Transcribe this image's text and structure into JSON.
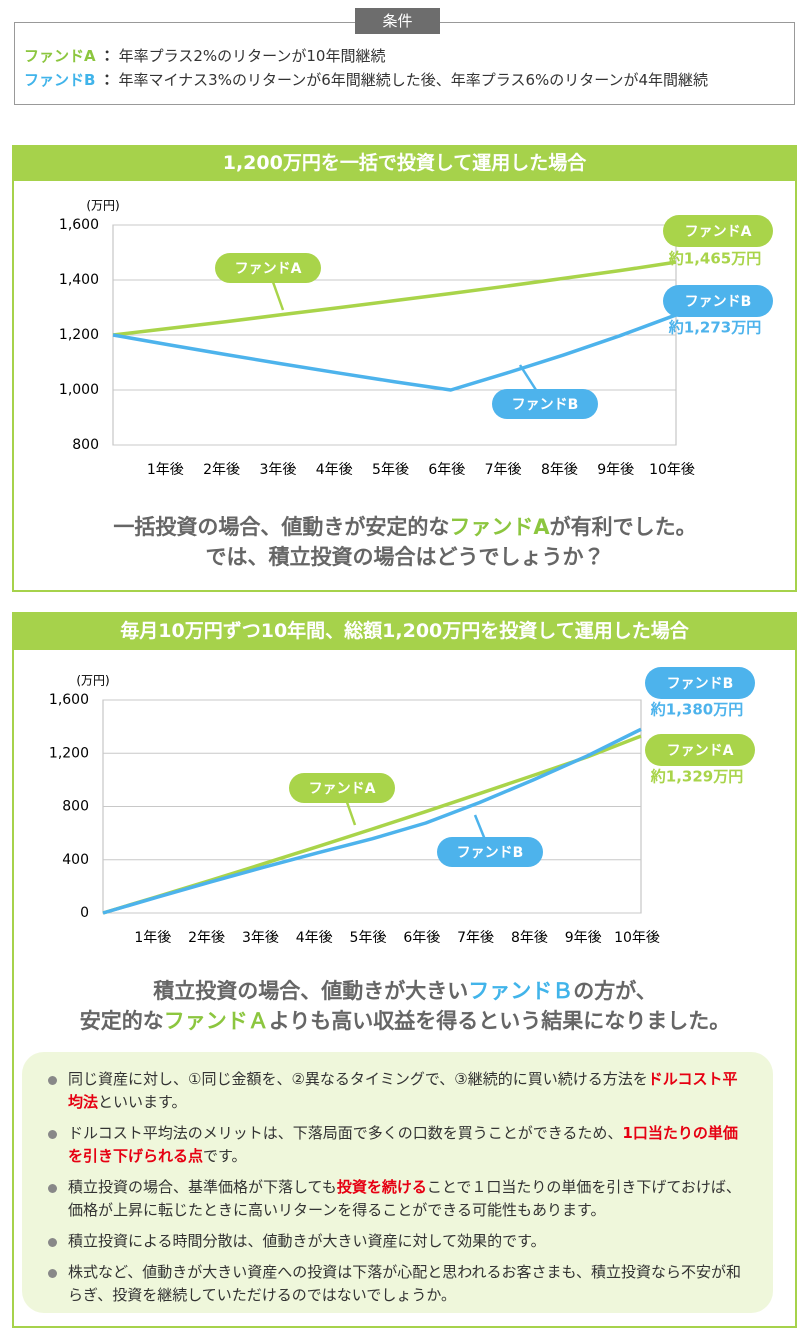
{
  "conditions": {
    "label": "条件",
    "items": [
      {
        "fund": "ファンドA",
        "color": "#8cc63f",
        "separator": "：",
        "text": "年率プラス2%のリターンが10年間継続"
      },
      {
        "fund": "ファンドB",
        "color": "#41b4ea",
        "separator": "：",
        "text": "年率マイナス3%のリターンが6年間継続した後、年率プラス6%のリターンが4年間継続"
      }
    ]
  },
  "chart_data": [
    {
      "type": "line",
      "title": "1,200万円を一括で投資して運用した場合",
      "y_label": "(万円)",
      "categories": [
        null,
        "1年後",
        "2年後",
        "3年後",
        "4年後",
        "5年後",
        "6年後",
        "7年後",
        "8年後",
        "9年後",
        "10年後"
      ],
      "ylim": [
        800,
        1600
      ],
      "yticks": [
        800,
        {
          "value": 1000,
          "label": "1,000"
        },
        {
          "value": 1200,
          "label": "1,200"
        },
        {
          "value": 1400,
          "label": "1,400"
        },
        {
          "value": 1600,
          "label": "1,600"
        }
      ],
      "grid": true,
      "series": [
        {
          "name": "ファンドA",
          "color": "#a9d44a",
          "end_label": "約1,465万円",
          "values": [
            1200,
            1224,
            1248,
            1274,
            1299,
            1325,
            1351,
            1378,
            1406,
            1434,
            1465
          ]
        },
        {
          "name": "ファンドB",
          "color": "#4db3ec",
          "end_label": "約1,273万円",
          "values": [
            1200,
            1164,
            1129,
            1095,
            1062,
            1030,
            1000,
            1062,
            1127,
            1197,
            1273
          ]
        }
      ],
      "summary": [
        [
          {
            "text": "一括投資の場合、値動きが安定的な"
          },
          {
            "text": "ファンドA",
            "color": "#8cc63f"
          },
          {
            "text": "が有利でした。"
          }
        ],
        [
          {
            "text": "では、積立投資の場合はどうでしょうか？"
          }
        ]
      ]
    },
    {
      "type": "line",
      "title": "毎月10万円ずつ10年間、総額1,200万円を投資して運用した場合",
      "y_label": "(万円)",
      "categories": [
        null,
        "1年後",
        "2年後",
        "3年後",
        "4年後",
        "5年後",
        "6年後",
        "7年後",
        "8年後",
        "9年後",
        "10年後"
      ],
      "ylim": [
        0,
        1600
      ],
      "yticks": [
        0,
        400,
        800,
        {
          "value": 1200,
          "label": "1,200"
        },
        {
          "value": 1600,
          "label": "1,600"
        }
      ],
      "grid": true,
      "series": [
        {
          "name": "ファンドA",
          "color": "#a9d44a",
          "end_label": "約1,329万円",
          "values": [
            0,
            122,
            246,
            372,
            500,
            630,
            762,
            897,
            1034,
            1172,
            1329
          ]
        },
        {
          "name": "ファンドB",
          "color": "#4db3ec",
          "end_label": "約1,380万円",
          "values": [
            0,
            118,
            233,
            345,
            453,
            557,
            676,
            830,
            1000,
            1180,
            1380
          ]
        }
      ],
      "summary": [
        [
          {
            "text": "積立投資の場合、値動きが大きい"
          },
          {
            "text": "ファンドＢ",
            "color": "#41b4ea"
          },
          {
            "text": "の方が、"
          }
        ],
        [
          {
            "text": "安定的な"
          },
          {
            "text": "ファンドＡ",
            "color": "#8cc63f"
          },
          {
            "text": "よりも高い収益を得るという結果になりました。"
          }
        ]
      ]
    }
  ],
  "notes": [
    [
      {
        "text": "同じ資産に対し、①同じ金額を、②異なるタイミングで、③継続的に買い続ける方法を"
      },
      {
        "text": "ドルコスト平均法",
        "color": "#e60012"
      },
      {
        "text": "といいます。"
      }
    ],
    [
      {
        "text": "ドルコスト平均法のメリットは、下落局面で多くの口数を買うことができるため、"
      },
      {
        "text": "1口当たりの単価を引き下げられる点",
        "color": "#e60012"
      },
      {
        "text": "です。"
      }
    ],
    [
      {
        "text": "積立投資の場合、基準価格が下落しても"
      },
      {
        "text": "投資を続ける",
        "color": "#e60012"
      },
      {
        "text": "ことで１口当たりの単価を引き下げておけば、価格が上昇に転じたときに高いリターンを得ることができる可能性もあります。"
      }
    ],
    [
      {
        "text": "積立投資による時間分散は、値動きが大きい資産に対して効果的です。"
      }
    ],
    [
      {
        "text": "株式など、値動きが大きい資産への投資は下落が心配と思われるお客さまも、積立投資なら不安が和らぎ、投資を継続していただけるのではないでしょうか。"
      }
    ]
  ]
}
